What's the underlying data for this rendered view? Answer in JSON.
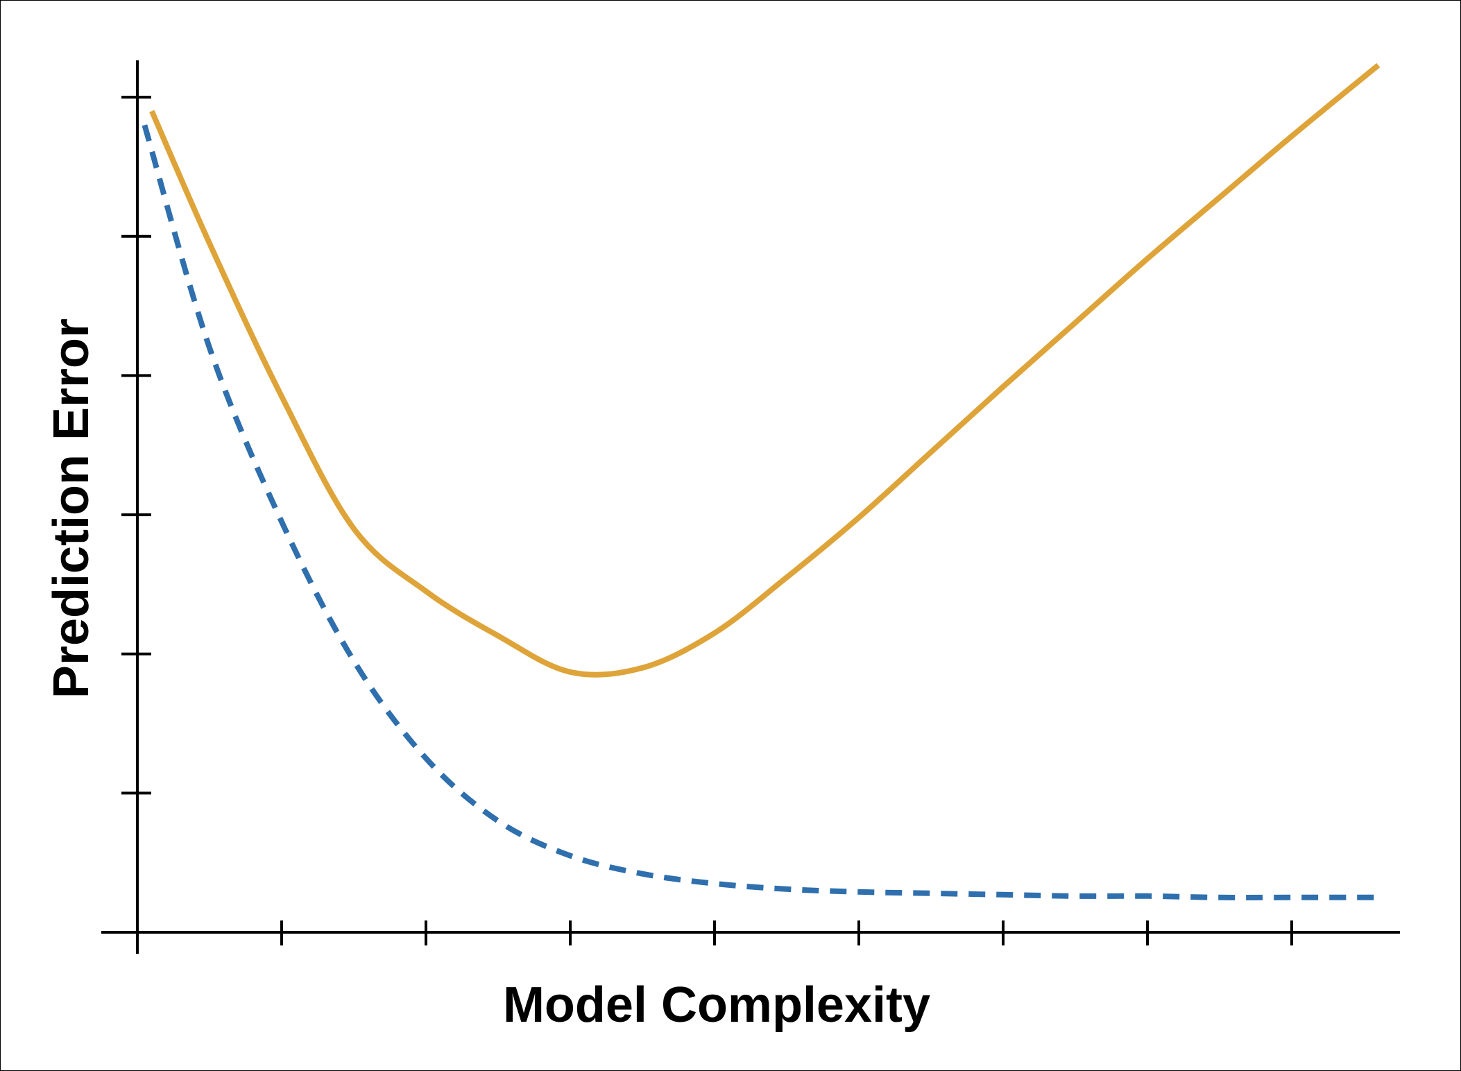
{
  "chart_data": {
    "type": "line",
    "title": "",
    "xlabel": "Model Complexity",
    "ylabel": "Prediction Error",
    "xlim": [
      0,
      8.75
    ],
    "ylim": [
      0,
      6.2
    ],
    "x_ticks": [
      0,
      1,
      2,
      3,
      4,
      5,
      6,
      7,
      8
    ],
    "y_ticks": [
      1,
      2,
      3,
      4,
      5,
      6
    ],
    "tick_labels_shown": false,
    "grid": false,
    "legend": "none",
    "series": [
      {
        "style": "solid",
        "color": "#dea439",
        "x": [
          0.1,
          0.5,
          1.0,
          1.5,
          2.0,
          2.5,
          3.0,
          3.5,
          4.0,
          4.5,
          5.0,
          5.5,
          6.0,
          6.5,
          7.0,
          7.5,
          8.0,
          8.6
        ],
        "y": [
          5.9,
          4.95,
          3.85,
          2.9,
          2.45,
          2.13,
          1.87,
          1.9,
          2.15,
          2.55,
          2.98,
          3.45,
          3.92,
          4.38,
          4.84,
          5.28,
          5.72,
          6.23
        ]
      },
      {
        "style": "dashed",
        "color": "#2f6fad",
        "x": [
          0.05,
          0.5,
          1.0,
          1.5,
          2.0,
          2.5,
          3.0,
          3.5,
          4.0,
          4.5,
          5.0,
          5.5,
          6.0,
          6.5,
          7.0,
          7.5,
          8.0,
          8.6
        ],
        "y": [
          5.8,
          4.2,
          2.95,
          1.95,
          1.25,
          0.8,
          0.55,
          0.42,
          0.35,
          0.31,
          0.29,
          0.28,
          0.27,
          0.26,
          0.26,
          0.25,
          0.25,
          0.25
        ]
      }
    ]
  }
}
